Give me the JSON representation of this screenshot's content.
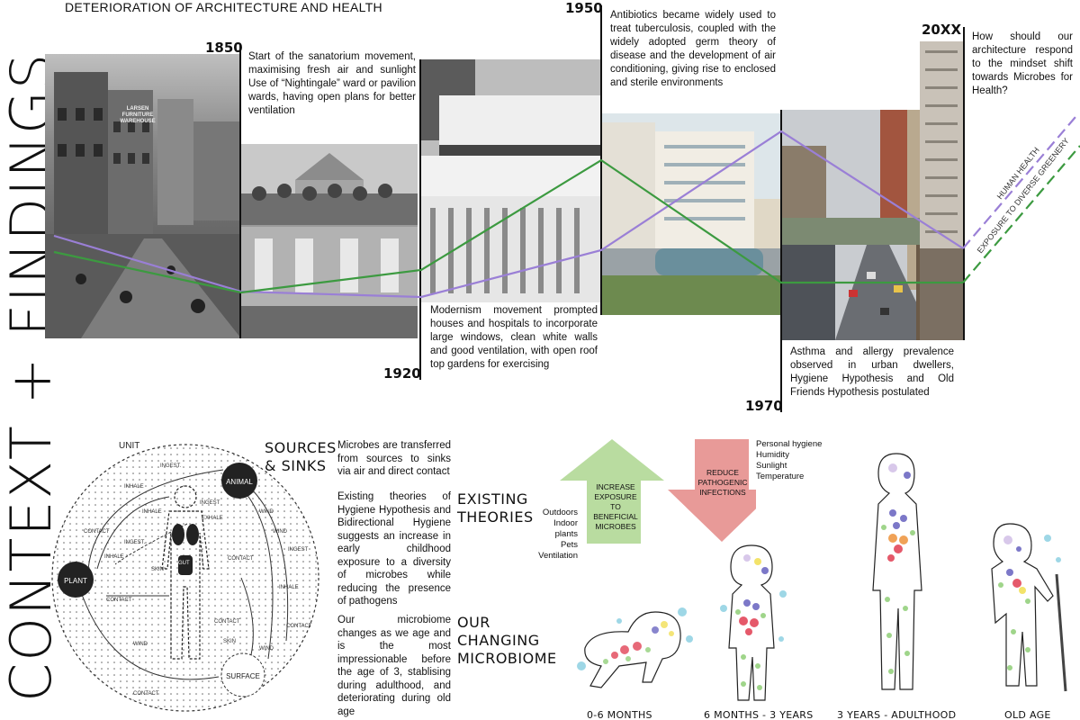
{
  "side_title": "CONTEXT + FINDINGS",
  "main_title": "DETERIORATION OF ARCHITECTURE AND HEALTH",
  "timeline": {
    "y1850": "1850",
    "y1850_text": "Start of the sanatorium movement, maximising fresh air and sunlight Use of “Nightingale” ward or pavilion wards, having open plans for better ventilation",
    "y1920": "1920",
    "y1920_text": "Modernism movement prompted houses and hospitals to incorporate large windows, clean white walls and good ventilation, with open roof top gardens for exercising",
    "y1950": "1950",
    "y1950_text": "Antibiotics became widely used to treat tuberculosis, coupled with the widely adopted germ theory of disease and the development of air conditioning, giving rise to enclosed and sterile environments",
    "y1970": "1970",
    "y1970_text": "Asthma and allergy prevalence observed in urban dwellers, Hygiene Hypothesis and Old Friends Hypothesis postulated",
    "y20xx": "20XX",
    "y20xx_text": "How should our architecture respond to the mindset shift towards Microbes for Health?",
    "photo_sign": "LARSEN FURNITURE WAREHOUSE",
    "legend_health": "HUMAN HEALTH",
    "legend_greenery": "EXPOSURE TO DIVERSE GREENERY",
    "colors": {
      "health": "#9a7fd6",
      "greenery": "#3c9a40"
    }
  },
  "sources": {
    "heading": "SOURCES & SINKS",
    "text": "Microbes are transferred from sources to sinks via air and direct contact",
    "diagram": {
      "unit": "UNIT",
      "animal": "ANIMAL",
      "plant": "PLANT",
      "surface": "SURFACE",
      "labels": [
        "INGEST.",
        "INHALE",
        "CONTACT",
        "INHALE",
        "INGEST",
        "EXHALE",
        "WIND",
        "INGEST.",
        "INHALE",
        "SKIN",
        "CONTACT",
        "GUT",
        "WIND",
        "CONTACT",
        "CONTACT",
        "SKIN",
        "WIND",
        "WIND",
        "CONTACT",
        "INGEST",
        "INHALE",
        "CONTACT"
      ]
    }
  },
  "theories": {
    "heading": "EXISTING THEORIES",
    "text": "Existing theories of Hygiene Hypothesis and Bidirectional Hygiene suggests an increase in early childhood exposure to a diversity of microbes while reducing the presence of pathogens",
    "up_arrow": "INCREASE EXPOSURE TO BENEFICIAL MICROBES",
    "down_arrow": "REDUCE PATHOGENIC INFECTIONS",
    "up_list": [
      "Outdoors",
      "Indoor plants",
      "Pets",
      "Ventilation"
    ],
    "down_list": [
      "Personal hygiene",
      "Humidity",
      "Sunlight",
      "Temperature"
    ],
    "colors": {
      "up": "#b9dca0",
      "down": "#e89a98"
    }
  },
  "microbiome": {
    "heading": "OUR CHANGING MICROBIOME",
    "text": "Our microbiome changes as we age and is the most impressionable before the age of 3, stablising during adulthood, and deteriorating during old age",
    "stages": [
      "0-6 MONTHS",
      "6 MONTHS - 3 YEARS",
      "3 YEARS - ADULTHOOD",
      "OLD AGE"
    ]
  }
}
